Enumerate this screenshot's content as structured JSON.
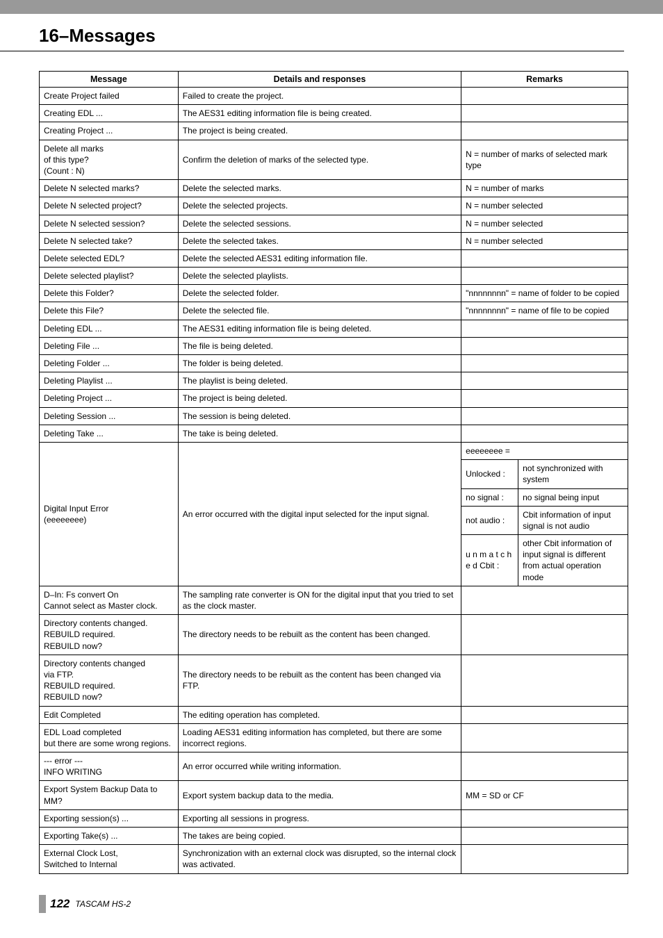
{
  "chapter_title": "16–Messages",
  "footer": {
    "page": "122",
    "model": "TASCAM HS-2"
  },
  "headers": {
    "message": "Message",
    "details": "Details and responses",
    "remarks": "Remarks"
  },
  "rows": [
    {
      "msg": "Create Project failed",
      "det": "Failed to create the project.",
      "rem": ""
    },
    {
      "msg": "Creating EDL ...",
      "det": "The AES31 editing information file is being created.",
      "rem": ""
    },
    {
      "msg": "Creating Project ...",
      "det": "The project is being created.",
      "rem": ""
    },
    {
      "msg": "Delete all marks\nof this type?\n(Count : N)",
      "det": "Confirm the deletion of marks of the selected type.",
      "rem": "N = number of marks of selected mark type"
    },
    {
      "msg": "Delete N selected marks?",
      "det": "Delete the selected marks.",
      "rem": "N = number of marks"
    },
    {
      "msg": "Delete N selected project?",
      "det": "Delete the selected projects.",
      "rem": "N = number selected"
    },
    {
      "msg": "Delete N selected session?",
      "det": "Delete the selected sessions.",
      "rem": "N = number selected"
    },
    {
      "msg": "Delete N selected take?",
      "det": "Delete the selected takes.",
      "rem": "N = number selected"
    },
    {
      "msg": "Delete selected EDL?",
      "det": "Delete the selected AES31 editing information file.",
      "rem": ""
    },
    {
      "msg": "Delete selected playlist?",
      "det": "Delete the selected playlists.",
      "rem": ""
    },
    {
      "msg": "Delete this Folder?",
      "det": "Delete the selected folder.",
      "rem": "\"nnnnnnnn\" = name of folder to be copied"
    },
    {
      "msg": "Delete this File?",
      "det": "Delete the selected file.",
      "rem": "\"nnnnnnnn\" = name of file to be copied"
    },
    {
      "msg": "Deleting EDL ...",
      "det": "The AES31 editing information file is being deleted.",
      "rem": ""
    },
    {
      "msg": "Deleting File ...",
      "det": "The file is being deleted.",
      "rem": ""
    },
    {
      "msg": "Deleting Folder ...",
      "det": "The folder is being deleted.",
      "rem": ""
    },
    {
      "msg": "Deleting Playlist ...",
      "det": "The playlist is being deleted.",
      "rem": ""
    },
    {
      "msg": "Deleting Project ...",
      "det": "The project is being deleted.",
      "rem": ""
    },
    {
      "msg": "Deleting Session ...",
      "det": "The session is being deleted.",
      "rem": ""
    },
    {
      "msg": "Deleting Take ...",
      "det": "The take is being deleted.",
      "rem": ""
    }
  ],
  "digital_input": {
    "msg": "Digital Input Error\n(eeeeeeee)",
    "det": "An error occurred with the digital input selected for the input signal.",
    "subhead": "eeeeeeee =",
    "subs": [
      {
        "a": "Unlocked :",
        "b": "not synchronized with system"
      },
      {
        "a": "no signal :",
        "b": "no signal being input"
      },
      {
        "a": "not audio :",
        "b": "Cbit information of input signal is not audio"
      },
      {
        "a": "u n m a t c h e d Cbit :",
        "b": "other Cbit information of input signal is different from actual operation mode"
      }
    ]
  },
  "rows2": [
    {
      "msg": "D–In: Fs convert On\nCannot select as Master clock.",
      "det": "The sampling rate converter is ON for the digital input that you tried to set as the clock master.",
      "rem": ""
    },
    {
      "msg": "Directory contents changed.\nREBUILD required.\nREBUILD now?",
      "det": "The directory needs to be rebuilt as the content has been changed.",
      "rem": ""
    },
    {
      "msg": "Directory contents changed\nvia FTP.\nREBUILD required.\nREBUILD now?",
      "det": "The directory needs to be rebuilt as the content has been changed via FTP.",
      "rem": ""
    },
    {
      "msg": "Edit Completed",
      "det": "The editing operation has completed.",
      "rem": ""
    },
    {
      "msg": "EDL Load completed\nbut there are some wrong regions.",
      "det": "Loading AES31 editing information has completed, but there are some incorrect regions.",
      "rem": ""
    },
    {
      "msg": "--- error ---\nINFO WRITING",
      "det": "An error occurred while writing information.",
      "rem": ""
    },
    {
      "msg": "Export System Backup Data to MM?",
      "det": "Export system backup data to the media.",
      "rem": "MM = SD or CF"
    },
    {
      "msg": "Exporting session(s) ...",
      "det": "Exporting all sessions in progress.",
      "rem": ""
    },
    {
      "msg": "Exporting Take(s) ...",
      "det": "The takes are being copied.",
      "rem": ""
    },
    {
      "msg": "External Clock Lost,\nSwitched to Internal",
      "det": "Synchronization with an external clock was disrupted, so the internal clock was activated.",
      "rem": ""
    }
  ]
}
